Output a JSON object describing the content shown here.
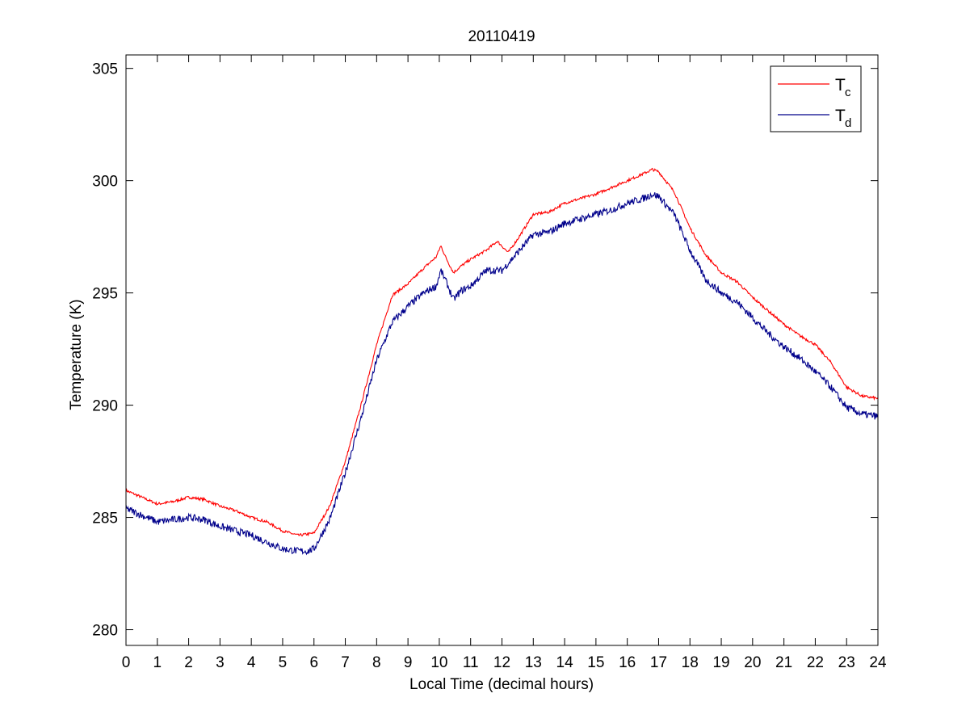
{
  "chart_data": {
    "type": "line",
    "title": "20110419",
    "xlabel": "Local Time (decimal hours)",
    "ylabel": "Temperature (K)",
    "xlim": [
      0,
      24
    ],
    "ylim": [
      279.3,
      305.6
    ],
    "xticks": [
      "0",
      "1",
      "2",
      "3",
      "4",
      "5",
      "6",
      "7",
      "8",
      "9",
      "10",
      "11",
      "12",
      "13",
      "14",
      "15",
      "16",
      "17",
      "18",
      "19",
      "20",
      "21",
      "22",
      "23",
      "24"
    ],
    "yticks": [
      "280",
      "285",
      "290",
      "295",
      "300",
      "305"
    ],
    "grid": false,
    "legend_position": "top-right",
    "series": [
      {
        "name": "T",
        "subscript": "c",
        "color": "#ff0000",
        "noise": 0.06,
        "points": [
          [
            0,
            286.2
          ],
          [
            0.5,
            285.9
          ],
          [
            1,
            285.6
          ],
          [
            1.5,
            285.7
          ],
          [
            2,
            285.9
          ],
          [
            2.5,
            285.8
          ],
          [
            3,
            285.5
          ],
          [
            3.5,
            285.3
          ],
          [
            4,
            285.0
          ],
          [
            4.5,
            284.8
          ],
          [
            5,
            284.4
          ],
          [
            5.5,
            284.2
          ],
          [
            6,
            284.3
          ],
          [
            6.5,
            285.5
          ],
          [
            7,
            287.5
          ],
          [
            7.5,
            290.0
          ],
          [
            8,
            292.7
          ],
          [
            8.5,
            294.9
          ],
          [
            9,
            295.4
          ],
          [
            9.5,
            296.1
          ],
          [
            9.9,
            296.6
          ],
          [
            10.05,
            297.1
          ],
          [
            10.2,
            296.6
          ],
          [
            10.45,
            295.9
          ],
          [
            10.7,
            296.2
          ],
          [
            11,
            296.5
          ],
          [
            11.5,
            296.9
          ],
          [
            11.85,
            297.3
          ],
          [
            12.2,
            296.8
          ],
          [
            12.5,
            297.4
          ],
          [
            13,
            298.5
          ],
          [
            13.5,
            298.6
          ],
          [
            14,
            299.0
          ],
          [
            14.5,
            299.2
          ],
          [
            15,
            299.4
          ],
          [
            15.5,
            299.7
          ],
          [
            16,
            300.0
          ],
          [
            16.5,
            300.3
          ],
          [
            16.8,
            300.5
          ],
          [
            17,
            300.4
          ],
          [
            17.5,
            299.5
          ],
          [
            18,
            297.9
          ],
          [
            18.5,
            296.7
          ],
          [
            19,
            295.9
          ],
          [
            19.5,
            295.5
          ],
          [
            20,
            294.8
          ],
          [
            20.5,
            294.2
          ],
          [
            21,
            293.6
          ],
          [
            21.5,
            293.1
          ],
          [
            22,
            292.7
          ],
          [
            22.5,
            291.9
          ],
          [
            23,
            290.8
          ],
          [
            23.5,
            290.4
          ],
          [
            24,
            290.3
          ]
        ]
      },
      {
        "name": "T",
        "subscript": "d",
        "color": "#00008b",
        "noise": 0.16,
        "points": [
          [
            0,
            285.4
          ],
          [
            0.5,
            285.1
          ],
          [
            1,
            284.8
          ],
          [
            1.5,
            284.9
          ],
          [
            2,
            285.0
          ],
          [
            2.5,
            284.9
          ],
          [
            3,
            284.6
          ],
          [
            3.5,
            284.4
          ],
          [
            4,
            284.2
          ],
          [
            4.5,
            283.9
          ],
          [
            5,
            283.6
          ],
          [
            5.5,
            283.5
          ],
          [
            5.8,
            283.5
          ],
          [
            6,
            283.6
          ],
          [
            6.5,
            284.9
          ],
          [
            7,
            287.0
          ],
          [
            7.5,
            289.4
          ],
          [
            8,
            292.0
          ],
          [
            8.5,
            293.7
          ],
          [
            9,
            294.4
          ],
          [
            9.5,
            295.0
          ],
          [
            9.9,
            295.3
          ],
          [
            10.05,
            296.0
          ],
          [
            10.25,
            295.4
          ],
          [
            10.45,
            294.7
          ],
          [
            10.7,
            295.1
          ],
          [
            11,
            295.3
          ],
          [
            11.5,
            296.0
          ],
          [
            12,
            296.0
          ],
          [
            12.5,
            296.8
          ],
          [
            13,
            297.6
          ],
          [
            13.5,
            297.7
          ],
          [
            14,
            298.1
          ],
          [
            14.5,
            298.3
          ],
          [
            15,
            298.5
          ],
          [
            15.5,
            298.7
          ],
          [
            16,
            299.0
          ],
          [
            16.5,
            299.2
          ],
          [
            16.8,
            299.4
          ],
          [
            17,
            299.3
          ],
          [
            17.5,
            298.5
          ],
          [
            18,
            296.9
          ],
          [
            18.5,
            295.6
          ],
          [
            19,
            295.0
          ],
          [
            19.5,
            294.6
          ],
          [
            20,
            293.9
          ],
          [
            20.5,
            293.2
          ],
          [
            21,
            292.6
          ],
          [
            21.5,
            292.1
          ],
          [
            22,
            291.5
          ],
          [
            22.5,
            290.8
          ],
          [
            23,
            289.9
          ],
          [
            23.5,
            289.6
          ],
          [
            24,
            289.5
          ]
        ]
      }
    ]
  }
}
